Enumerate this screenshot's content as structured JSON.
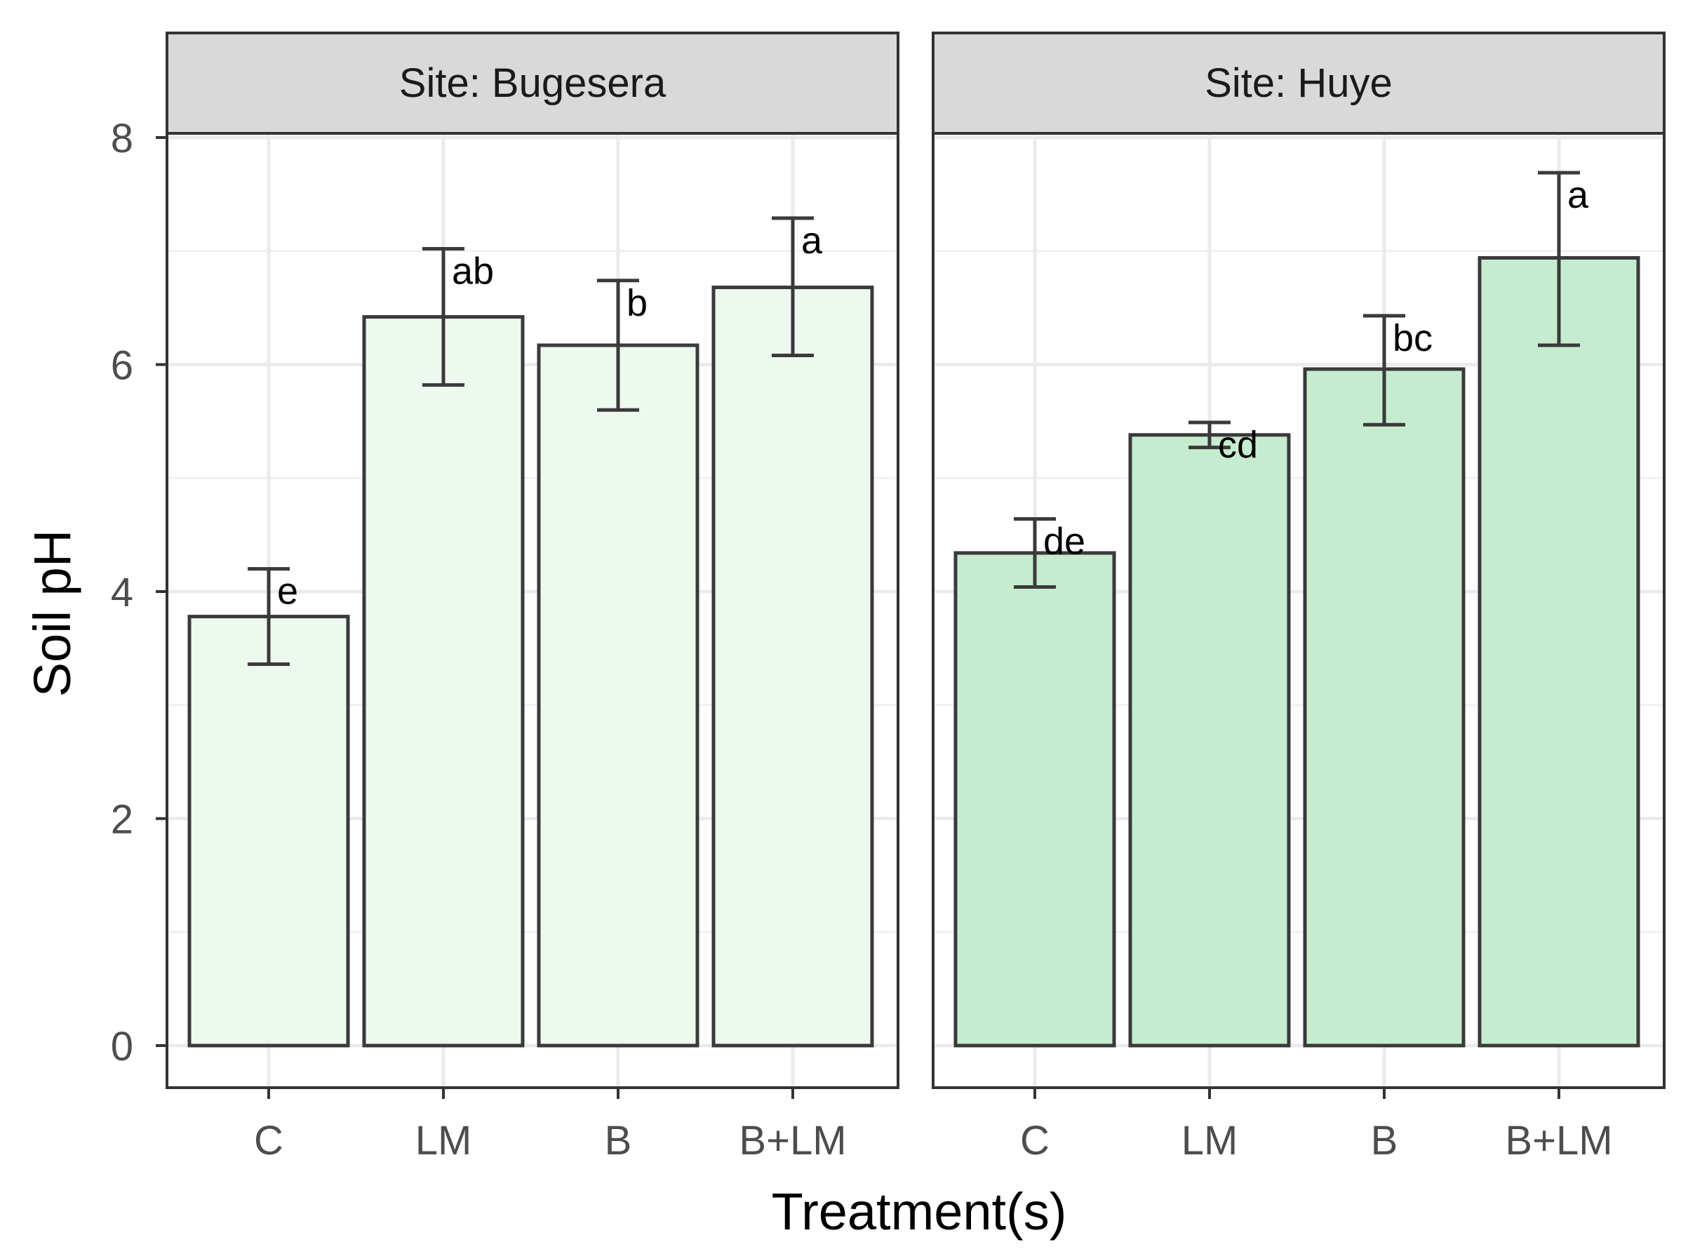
{
  "chart_data": {
    "type": "bar",
    "title": "",
    "xlabel": "Treatment(s)",
    "ylabel": "Soil pH",
    "ylim": [
      0,
      8.0
    ],
    "yticks": [
      0,
      2,
      4,
      6,
      8
    ],
    "categories": [
      "C",
      "LM",
      "B",
      "B+LM"
    ],
    "grid": true,
    "legend": "none",
    "facets": [
      {
        "label": "Site: Bugesera",
        "fill_color": "#edf8ee",
        "values": [
          3.78,
          6.42,
          6.17,
          6.68
        ],
        "error_low": [
          3.36,
          5.82,
          5.6,
          6.08
        ],
        "error_high": [
          4.2,
          7.02,
          6.74,
          7.29
        ],
        "letters": [
          "e",
          "ab",
          "b",
          "a"
        ]
      },
      {
        "label": "Site: Huye",
        "fill_color": "#c6ecd0",
        "values": [
          4.34,
          5.38,
          5.96,
          6.94
        ],
        "error_low": [
          4.04,
          5.27,
          5.47,
          6.17
        ],
        "error_high": [
          4.64,
          5.49,
          6.43,
          7.69
        ],
        "letters": [
          "de",
          "cd",
          "bc",
          "a"
        ]
      }
    ]
  }
}
